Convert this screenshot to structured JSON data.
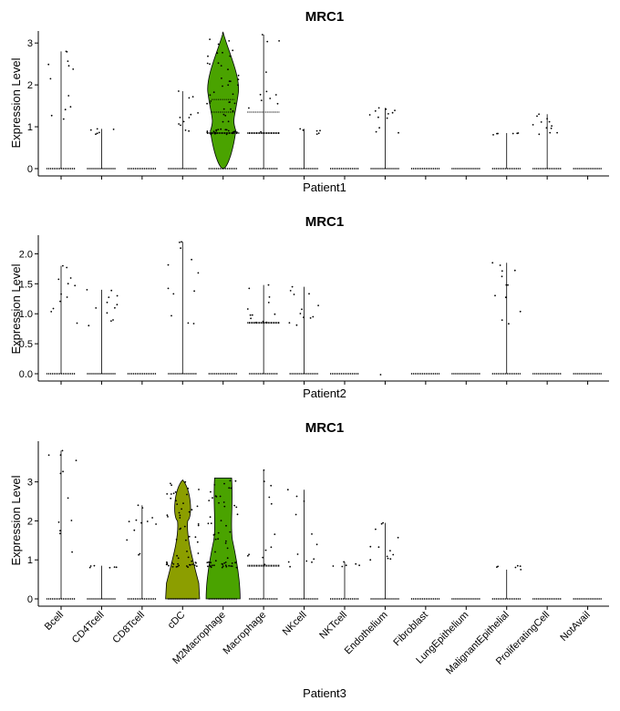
{
  "chart_data": [
    {
      "type": "violin",
      "title": "MRC1",
      "xlabel": "Patient1",
      "ylabel": "Expression Level",
      "ylim": [
        0,
        3.25
      ],
      "yticks": [
        0,
        1,
        2,
        3
      ],
      "categories": [
        "Bcell",
        "CD4Tcell",
        "CD8Tcell",
        "cDC",
        "M2Macrophage",
        "Macrophage",
        "NKcell",
        "NKTcell",
        "Endothelium",
        "Fibroblast",
        "LungEpithelium",
        "MalignantEpithelial",
        "ProliferatingCell",
        "NotAvail"
      ],
      "show_category_labels": false,
      "max_values": [
        2.8,
        0.95,
        0,
        1.85,
        3.25,
        3.2,
        0.95,
        0,
        1.45,
        0,
        0,
        0.85,
        1.3,
        0
      ],
      "violin_fill": [
        null,
        null,
        null,
        null,
        "#4aa300",
        null,
        null,
        null,
        null,
        null,
        null,
        null,
        null,
        null
      ]
    },
    {
      "type": "violin",
      "title": "MRC1",
      "xlabel": "Patient2",
      "ylabel": "Expression Level",
      "ylim": [
        0,
        2.3
      ],
      "yticks": [
        0.0,
        0.5,
        1.0,
        1.5,
        2.0
      ],
      "ytick_labels": [
        "0.0",
        "0.5",
        "1.0",
        "1.5",
        "2.0"
      ],
      "categories": [
        "Bcell",
        "CD4Tcell",
        "CD8Tcell",
        "cDC",
        "M2Macrophage",
        "Macrophage",
        "NKcell",
        "NKTcell",
        "Endothelium",
        "Fibroblast",
        "LungEpithelium",
        "MalignantEpithelial",
        "ProliferatingCell",
        "NotAvail"
      ],
      "show_category_labels": false,
      "max_values": [
        1.8,
        1.4,
        0,
        2.2,
        0,
        1.48,
        1.45,
        0,
        0,
        0,
        0,
        1.85,
        0,
        0
      ],
      "violin_fill": [
        null,
        null,
        null,
        null,
        null,
        null,
        null,
        null,
        null,
        null,
        null,
        null,
        null,
        null
      ]
    },
    {
      "type": "violin",
      "title": "MRC1",
      "xlabel": "Patient3",
      "ylabel": "Expression Level",
      "ylim": [
        0,
        4.0
      ],
      "yticks": [
        0,
        1,
        2,
        3
      ],
      "categories": [
        "Bcell",
        "CD4Tcell",
        "CD8Tcell",
        "cDC",
        "M2Macrophage",
        "Macrophage",
        "NKcell",
        "NKTcell",
        "Endothelium",
        "Fibroblast",
        "LungEpithelium",
        "MalignantEpithelial",
        "ProliferatingCell",
        "NotAvail"
      ],
      "show_category_labels": true,
      "max_values": [
        3.8,
        0.85,
        2.4,
        3.05,
        3.1,
        3.3,
        2.8,
        0.95,
        1.95,
        0,
        0,
        0.75,
        0,
        0
      ],
      "violin_fill": [
        null,
        null,
        null,
        "#8c9e00",
        "#4aa300",
        null,
        null,
        null,
        null,
        null,
        null,
        null,
        null,
        null
      ]
    }
  ]
}
